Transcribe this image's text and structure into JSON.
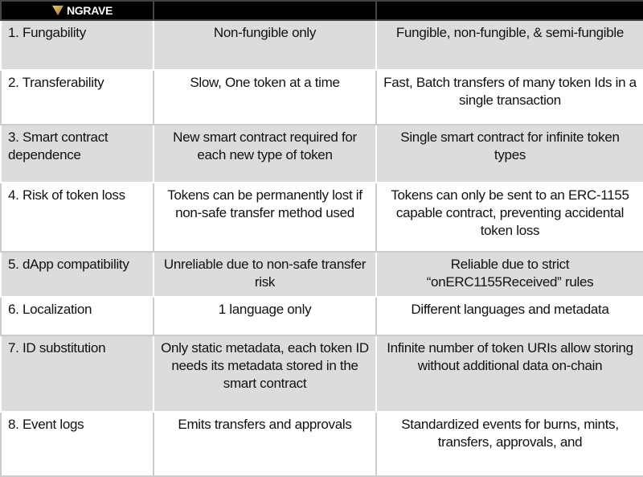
{
  "logo": "NGRAVE",
  "rows": [
    {
      "feature": "1. Fungability",
      "erc721": "Non-fungible only",
      "erc1155": "Fungible, non-fungible, & semi-fungible"
    },
    {
      "feature": "2. Transferability",
      "erc721": "Slow, One token at a time",
      "erc1155": "Fast, Batch transfers of many token Ids in a single transaction"
    },
    {
      "feature": "3. Smart contract dependence",
      "erc721": "New smart contract required for each new type of token",
      "erc1155": "Single smart contract for infinite token types"
    },
    {
      "feature": "4. Risk of token loss",
      "erc721": "Tokens can be permanently lost if non-safe transfer method used",
      "erc1155": "Tokens can only be sent to an ERC-1155 capable contract, preventing accidental token loss"
    },
    {
      "feature": "5. dApp compatibility",
      "erc721": "Unreliable due to non-safe transfer risk",
      "erc1155": "Reliable due to strict “onERC1155Received” rules"
    },
    {
      "feature": "6. Localization",
      "erc721": "1 language only",
      "erc1155": "Different languages and metadata"
    },
    {
      "feature": "7. ID substitution",
      "erc721": "Only static metadata, each token ID needs its metadata stored in the smart contract",
      "erc1155": "Infinite number of token URIs allow storing without additional data on-chain"
    },
    {
      "feature": "8. Event logs",
      "erc721": "Emits transfers and approvals",
      "erc1155": "Standardized events for burns, mints, transfers, approvals, and"
    }
  ]
}
